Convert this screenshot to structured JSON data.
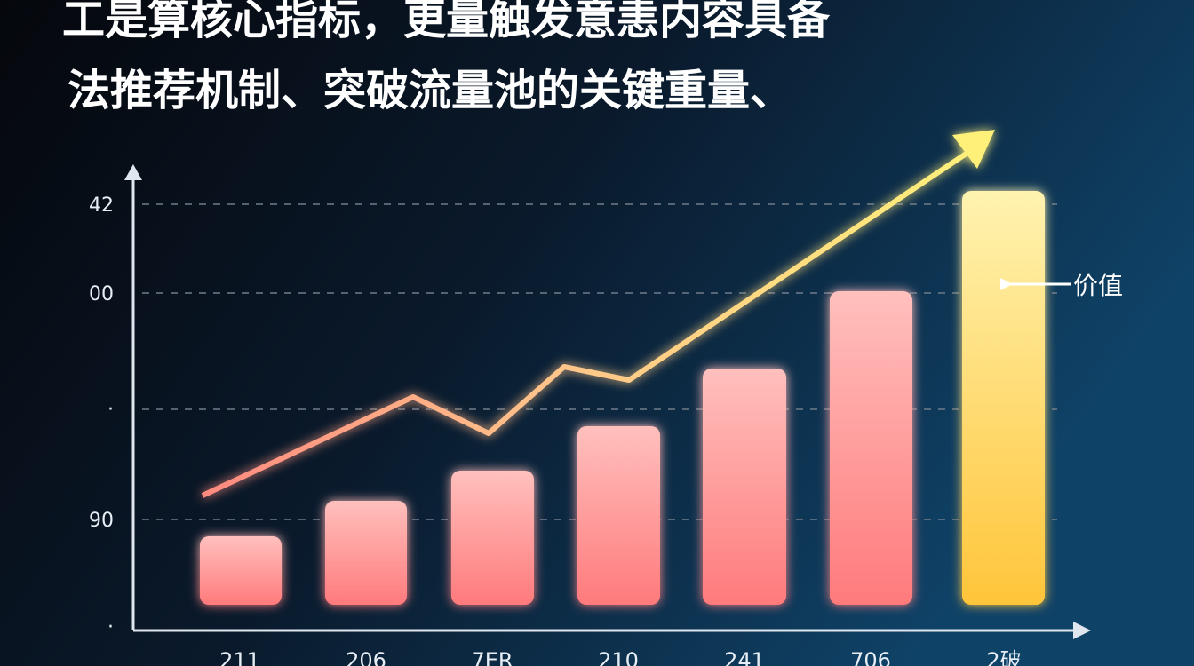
{
  "header": {
    "title_line_1": "工是算核心指标，更量触发意恚内容具备",
    "title_line_2": "法推荐机制、突破流量池的关键重量、"
  },
  "y_axis_labels": [
    "42",
    "00",
    "·",
    "90",
    "·"
  ],
  "x_axis_labels": [
    "211",
    "206",
    "7ER",
    "210",
    "241",
    "706",
    "2破"
  ],
  "annotation": "价值"
}
